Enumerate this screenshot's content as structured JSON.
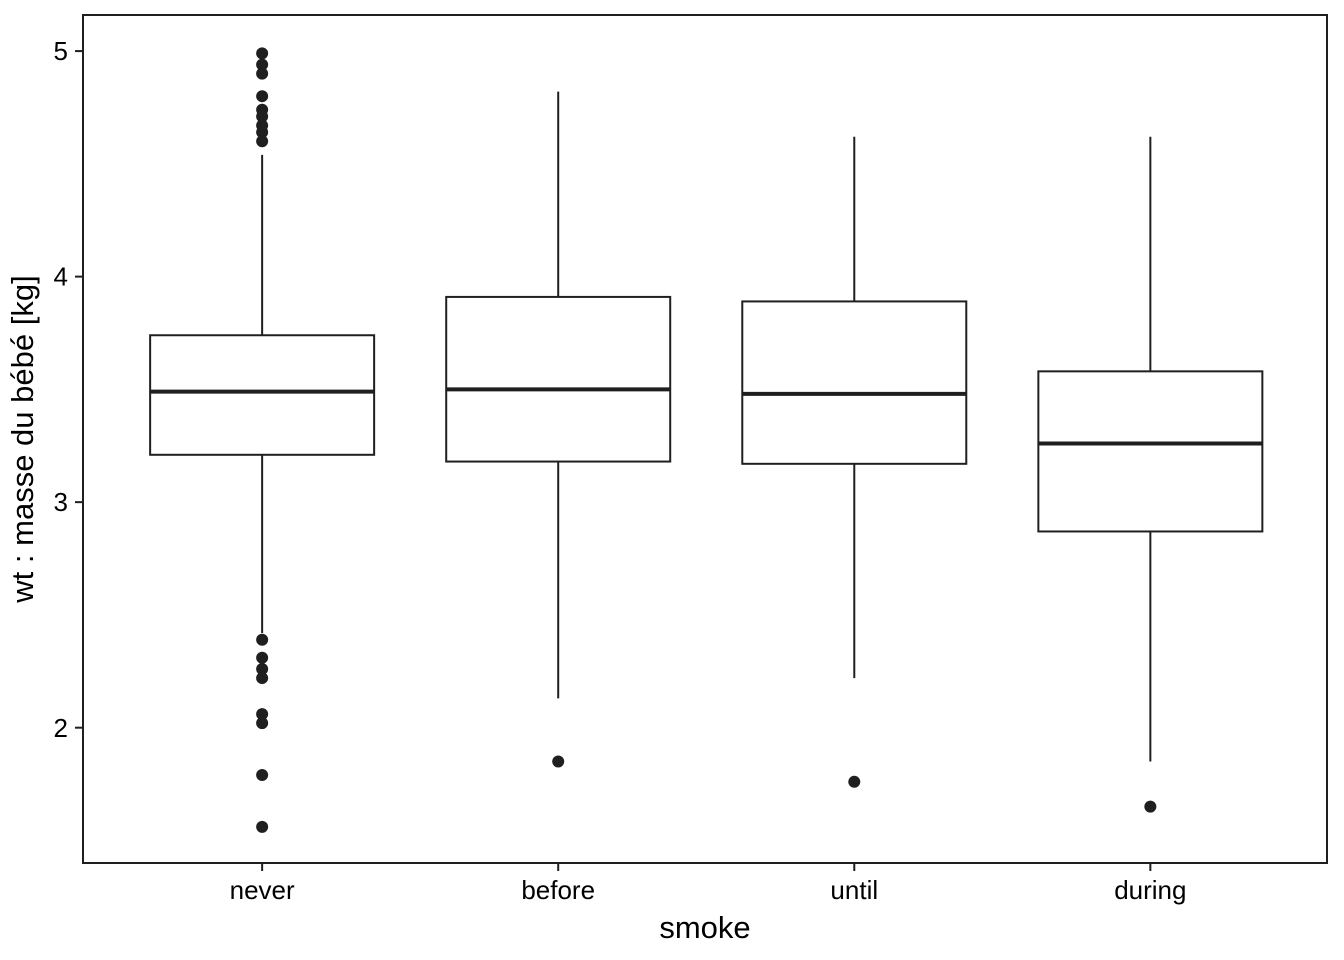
{
  "chart_data": {
    "type": "boxplot",
    "title": "",
    "xlabel": "smoke",
    "ylabel": "wt : masse du bébé [kg]",
    "categories": [
      "never",
      "before",
      "until",
      "during"
    ],
    "y_ticks": [
      2,
      3,
      4,
      5
    ],
    "y_range": [
      1.4,
      5.16
    ],
    "grid": false,
    "legend": "none",
    "series": [
      {
        "category": "never",
        "whisker_low": 2.42,
        "q1": 3.21,
        "median": 3.49,
        "q3": 3.74,
        "whisker_high": 4.54,
        "outliers": [
          4.99,
          4.94,
          4.9,
          4.8,
          4.74,
          4.71,
          4.67,
          4.64,
          4.6,
          2.39,
          2.31,
          2.26,
          2.22,
          2.06,
          2.02,
          1.79,
          1.56
        ]
      },
      {
        "category": "before",
        "whisker_low": 2.13,
        "q1": 3.18,
        "median": 3.5,
        "q3": 3.91,
        "whisker_high": 4.82,
        "outliers": [
          1.85
        ]
      },
      {
        "category": "until",
        "whisker_low": 2.22,
        "q1": 3.17,
        "median": 3.48,
        "q3": 3.89,
        "whisker_high": 4.62,
        "outliers": [
          1.76
        ]
      },
      {
        "category": "during",
        "whisker_low": 1.85,
        "q1": 2.87,
        "median": 3.26,
        "q3": 3.58,
        "whisker_high": 4.62,
        "outliers": [
          1.65
        ]
      }
    ]
  },
  "styles": {
    "line_color": "#1f1f1f",
    "point_color": "#1f1f1f",
    "box_fill": "#ffffff",
    "background": "#ffffff"
  }
}
